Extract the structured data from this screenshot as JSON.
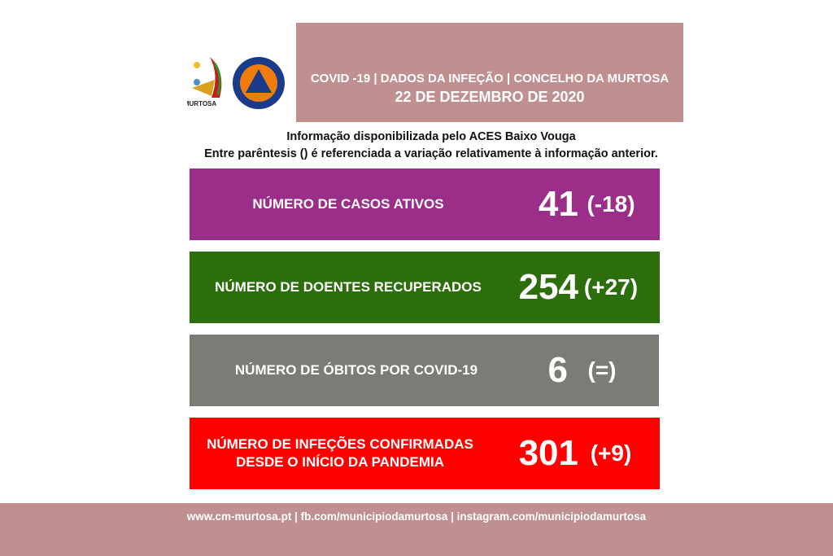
{
  "header": {
    "title": "COVID -19 | DADOS DA INFEÇÃO | CONCELHO DA MURTOSA",
    "date": "22 DE DEZEMBRO DE 2020",
    "color": "#c09090"
  },
  "logos": {
    "municipio": "MURTOSA município",
    "proteccao": "PROTECÇÃO CIVIL MURTOSA"
  },
  "info": {
    "line1": "Informação disponibilizada pelo ACES Baixo Vouga",
    "line2": "Entre parêntesis () é referenciada a variação relativamente à informação anterior."
  },
  "cards": [
    {
      "label": "NÚMERO DE CASOS ATIVOS",
      "value": "41",
      "change": "(-18)",
      "color": "#9a2e88"
    },
    {
      "label": "NÚMERO DE DOENTES RECUPERADOS",
      "value": "254",
      "change": "(+27)",
      "color": "#2b6e0b"
    },
    {
      "label": "NÚMERO DE ÓBITOS POR COVID-19",
      "value": "6",
      "change": "(=)",
      "color": "#7a7d76"
    },
    {
      "label": "NÚMERO DE INFEÇÕES CONFIRMADAS DESDE O INÍCIO DA PANDEMIA",
      "value": "301",
      "change": "(+9)",
      "color": "#ff0000"
    }
  ],
  "footer": {
    "text": "www.cm-murtosa.pt  | fb.com/municipiodamurtosa | instagram.com/municipiodamurtosa"
  }
}
